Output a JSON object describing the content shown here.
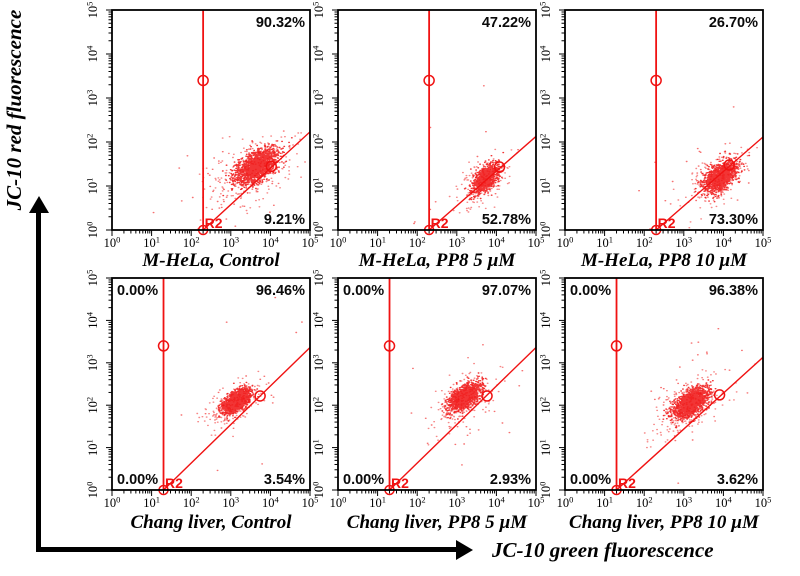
{
  "figure": {
    "y_axis_label": "JC-10 red fluorescence",
    "x_axis_label": "JC-10 green fluorescence"
  },
  "chart_data": {
    "type": "scatter",
    "subtype": "flow-cytometry-dot-plots",
    "grid": {
      "rows": 2,
      "cols": 3
    },
    "x_scale": "log",
    "y_scale": "log",
    "x_range": [
      1,
      100000
    ],
    "y_range": [
      1,
      100000
    ],
    "x_tick_labels": [
      "10^0",
      "10^1",
      "10^2",
      "10^3",
      "10^4",
      "10^5"
    ],
    "y_tick_labels": [
      "10^0",
      "10^1",
      "10^2",
      "10^3",
      "10^4",
      "10^5"
    ],
    "gate_label": "R2",
    "point_color": "#f01212",
    "plots": [
      {
        "title": "M-HeLa, Control",
        "percentages": {
          "upper_right": "90.32%",
          "lower_right": "9.21%"
        },
        "gate": {
          "vline_x": 200,
          "vline_circle_y": 2500,
          "foot": [
            200,
            1
          ],
          "diag_end": [
            100000,
            170
          ],
          "diag_circle": [
            10500,
            28
          ]
        },
        "clusters": [
          {
            "c": [
              3.65,
              1.45
            ],
            "s": [
              0.26,
              0.2
            ],
            "rho": 0.55,
            "n": 1600
          },
          {
            "c": [
              3.58,
              1.35
            ],
            "s": [
              0.55,
              0.4
            ],
            "rho": 0.5,
            "n": 260
          },
          {
            "c": [
              3.05,
              1.05
            ],
            "s": [
              0.75,
              0.55
            ],
            "rho": 0.3,
            "n": 60
          }
        ]
      },
      {
        "title": "M-HeLa, PP8 5 µM",
        "percentages": {
          "upper_right": "47.22%",
          "lower_right": "52.78%"
        },
        "gate": {
          "vline_x": 200,
          "vline_circle_y": 2500,
          "foot": [
            200,
            1
          ],
          "diag_end": [
            100000,
            134
          ],
          "diag_circle": [
            12000,
            27
          ]
        },
        "clusters": [
          {
            "c": [
              3.72,
              1.17
            ],
            "s": [
              0.16,
              0.16
            ],
            "rho": 0.5,
            "n": 900
          },
          {
            "c": [
              3.68,
              1.13
            ],
            "s": [
              0.32,
              0.28
            ],
            "rho": 0.5,
            "n": 170
          },
          {
            "c": [
              3.3,
              1.5
            ],
            "s": [
              0.9,
              0.9
            ],
            "rho": 0.2,
            "n": 14
          }
        ]
      },
      {
        "title": "M-HeLa, PP8 10 µM",
        "percentages": {
          "upper_right": "26.70%",
          "lower_right": "73.30%"
        },
        "gate": {
          "vline_x": 200,
          "vline_circle_y": 2500,
          "foot": [
            200,
            1
          ],
          "diag_end": [
            100000,
            130
          ],
          "diag_circle": [
            14000,
            30
          ]
        },
        "clusters": [
          {
            "c": [
              3.91,
              1.2
            ],
            "s": [
              0.2,
              0.17
            ],
            "rho": 0.5,
            "n": 1150
          },
          {
            "c": [
              3.84,
              1.14
            ],
            "s": [
              0.38,
              0.32
            ],
            "rho": 0.5,
            "n": 220
          },
          {
            "c": [
              3.5,
              1.4
            ],
            "s": [
              0.85,
              0.8
            ],
            "rho": 0.2,
            "n": 22
          }
        ]
      },
      {
        "title": "Chang liver, Control",
        "percentages": {
          "upper_left": "0.00%",
          "upper_right": "96.46%",
          "lower_left": "0.00%",
          "lower_right": "3.54%"
        },
        "gate": {
          "vline_x": 20,
          "vline_circle_y": 2500,
          "foot": [
            20,
            1
          ],
          "diag_end": [
            100000,
            2300
          ],
          "diag_circle": [
            5500,
            165
          ]
        },
        "clusters": [
          {
            "c": [
              3.15,
              2.1
            ],
            "s": [
              0.17,
              0.14
            ],
            "rho": 0.6,
            "n": 1400
          },
          {
            "c": [
              3.1,
              2.03
            ],
            "s": [
              0.32,
              0.27
            ],
            "rho": 0.6,
            "n": 240
          },
          {
            "c": [
              3.1,
              2.3
            ],
            "s": [
              0.65,
              0.8
            ],
            "rho": 0.2,
            "n": 26
          }
        ]
      },
      {
        "title": "Chang liver, PP8 5 µM",
        "percentages": {
          "upper_left": "0.00%",
          "upper_right": "97.07%",
          "lower_left": "0.00%",
          "lower_right": "2.93%"
        },
        "gate": {
          "vline_x": 20,
          "vline_circle_y": 2500,
          "foot": [
            20,
            1
          ],
          "diag_end": [
            100000,
            2300
          ],
          "diag_circle": [
            5800,
            165
          ]
        },
        "clusters": [
          {
            "c": [
              3.18,
              2.2
            ],
            "s": [
              0.19,
              0.16
            ],
            "rho": 0.55,
            "n": 1400
          },
          {
            "c": [
              3.12,
              2.1
            ],
            "s": [
              0.36,
              0.3
            ],
            "rho": 0.55,
            "n": 250
          },
          {
            "c": [
              3.1,
              2.2
            ],
            "s": [
              0.7,
              0.85
            ],
            "rho": 0.2,
            "n": 30
          }
        ]
      },
      {
        "title": "Chang liver, PP8 10 µM",
        "percentages": {
          "upper_left": "0.00%",
          "upper_right": "96.38%",
          "lower_left": "0.00%",
          "lower_right": "3.62%"
        },
        "gate": {
          "vline_x": 20,
          "vline_circle_y": 2500,
          "foot": [
            20,
            1
          ],
          "diag_end": [
            100000,
            1350
          ],
          "diag_circle": [
            8000,
            175
          ]
        },
        "clusters": [
          {
            "c": [
              3.18,
              2.06
            ],
            "s": [
              0.21,
              0.17
            ],
            "rho": 0.55,
            "n": 1500
          },
          {
            "c": [
              3.12,
              1.98
            ],
            "s": [
              0.4,
              0.33
            ],
            "rho": 0.55,
            "n": 270
          },
          {
            "c": [
              3.2,
              2.3
            ],
            "s": [
              0.7,
              0.9
            ],
            "rho": 0.2,
            "n": 34
          }
        ]
      }
    ]
  }
}
